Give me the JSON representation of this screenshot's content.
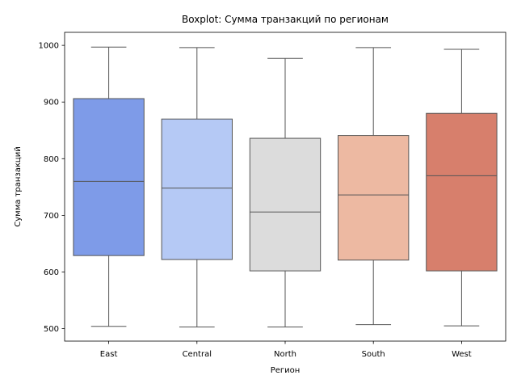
{
  "chart_data": {
    "type": "boxplot",
    "title": "Boxplot: Сумма транзакций по регионам",
    "xlabel": "Регион",
    "ylabel": "Сумма транзакций",
    "ylim": [
      478,
      1023
    ],
    "yticks": [
      500,
      600,
      700,
      800,
      900,
      1000
    ],
    "grid": false,
    "categories": [
      "East",
      "Central",
      "North",
      "South",
      "West"
    ],
    "series": [
      {
        "category": "East",
        "whisker_low": 504,
        "q1": 629,
        "median": 760,
        "q3": 906,
        "whisker_high": 997,
        "color": "#7e9be8"
      },
      {
        "category": "Central",
        "whisker_low": 503,
        "q1": 622,
        "median": 748,
        "q3": 870,
        "whisker_high": 996,
        "color": "#b5c9f5"
      },
      {
        "category": "North",
        "whisker_low": 503,
        "q1": 602,
        "median": 706,
        "q3": 836,
        "whisker_high": 977,
        "color": "#dcdcdc"
      },
      {
        "category": "South",
        "whisker_low": 507,
        "q1": 621,
        "median": 736,
        "q3": 841,
        "whisker_high": 996,
        "color": "#edb9a2"
      },
      {
        "category": "West",
        "whisker_low": 505,
        "q1": 602,
        "median": 770,
        "q3": 880,
        "whisker_high": 993,
        "color": "#d77f6c"
      }
    ]
  }
}
